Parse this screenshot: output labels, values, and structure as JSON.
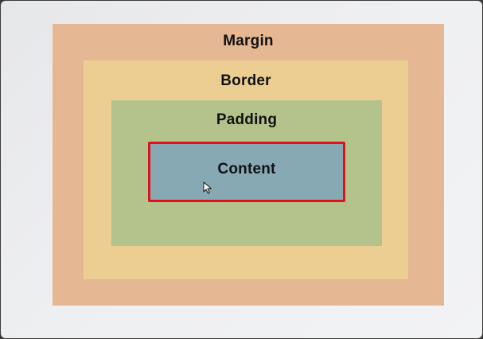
{
  "diagram": {
    "layers": {
      "margin": {
        "label": "Margin",
        "color": "#e5b893"
      },
      "border": {
        "label": "Border",
        "color": "#ecce93"
      },
      "padding": {
        "label": "Padding",
        "color": "#b4c28c"
      },
      "content": {
        "label": "Content",
        "color": "#86a9b4",
        "outline_color": "#e0111b"
      }
    }
  },
  "cursor": {
    "icon": "mouse-pointer-icon"
  }
}
